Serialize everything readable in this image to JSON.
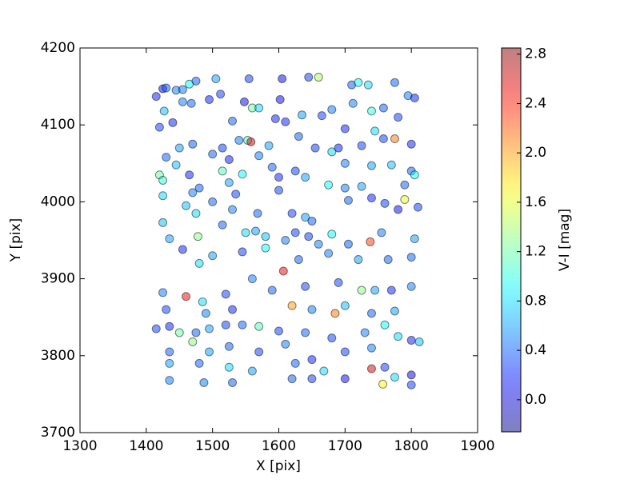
{
  "chart_data": {
    "type": "scatter",
    "xlabel": "X [pix]",
    "ylabel": "Y [pix]",
    "colorbar_label": "V-I [mag]",
    "xlim": [
      1300,
      1900
    ],
    "xticks": [
      1300,
      1400,
      1500,
      1600,
      1700,
      1800,
      1900
    ],
    "ylim": [
      3700,
      4200
    ],
    "yticks": [
      3700,
      3800,
      3900,
      4000,
      4100,
      4200
    ],
    "clim": [
      -0.26,
      2.85
    ],
    "cticks": [
      {
        "value": 0,
        "label": "0.0"
      },
      0.4,
      0.8,
      1.2,
      1.6,
      {
        "value": 2,
        "label": "2.0"
      },
      2.4,
      2.8
    ],
    "colormap": "jet",
    "alpha": 0.5,
    "x": [
      1415,
      1425,
      1430,
      1445,
      1455,
      1465,
      1475,
      1505,
      1555,
      1605,
      1645,
      1660,
      1710,
      1720,
      1735,
      1775,
      1420,
      1427,
      1440,
      1455,
      1468,
      1495,
      1512,
      1530,
      1548,
      1560,
      1570,
      1595,
      1602,
      1610,
      1635,
      1665,
      1680,
      1700,
      1712,
      1740,
      1758,
      1780,
      1795,
      1805,
      1745,
      1758,
      1775,
      1800,
      1450,
      1470,
      1515,
      1540,
      1553,
      1558,
      1585,
      1630,
      1655,
      1680,
      1690,
      1725,
      1430,
      1445,
      1500,
      1525,
      1570,
      1590,
      1625,
      1700,
      1740,
      1770,
      1800,
      1420,
      1425,
      1465,
      1480,
      1515,
      1525,
      1535,
      1545,
      1600,
      1640,
      1675,
      1700,
      1725,
      1790,
      1805,
      1425,
      1460,
      1470,
      1500,
      1530,
      1568,
      1600,
      1620,
      1640,
      1650,
      1705,
      1740,
      1760,
      1780,
      1790,
      1810,
      1425,
      1435,
      1475,
      1478,
      1515,
      1550,
      1565,
      1580,
      1610,
      1625,
      1645,
      1660,
      1680,
      1705,
      1738,
      1755,
      1805,
      1455,
      1480,
      1500,
      1545,
      1580,
      1607,
      1630,
      1675,
      1720,
      1765,
      1800,
      1425,
      1460,
      1485,
      1520,
      1560,
      1590,
      1640,
      1690,
      1725,
      1745,
      1770,
      1800,
      1430,
      1490,
      1530,
      1620,
      1650,
      1700,
      1740,
      1775,
      1415,
      1435,
      1450,
      1475,
      1495,
      1520,
      1545,
      1570,
      1600,
      1640,
      1680,
      1685,
      1730,
      1760,
      1800,
      1812,
      1435,
      1470,
      1495,
      1525,
      1570,
      1610,
      1650,
      1700,
      1740,
      1780,
      1435,
      1480,
      1525,
      1560,
      1625,
      1668,
      1740,
      1760,
      1800,
      1435,
      1487,
      1530,
      1620,
      1650,
      1700,
      1757,
      1775,
      1800
    ],
    "y": [
      4137,
      4147,
      4148,
      4145,
      4146,
      4153,
      4157,
      4160,
      4160,
      4160,
      4162,
      4162,
      4152,
      4155,
      4152,
      4155,
      4097,
      4118,
      4103,
      4130,
      4128,
      4133,
      4140,
      4105,
      4130,
      4122,
      4122,
      4108,
      4133,
      4104,
      4113,
      4112,
      4120,
      4095,
      4128,
      4118,
      4122,
      4110,
      4138,
      4135,
      4092,
      4082,
      4082,
      4075,
      4070,
      4075,
      4070,
      4080,
      4080,
      4078,
      4073,
      4085,
      4070,
      4065,
      4070,
      4073,
      4058,
      4048,
      4062,
      4055,
      4060,
      4045,
      4040,
      4050,
      4047,
      4048,
      4040,
      4035,
      4028,
      4035,
      4018,
      4040,
      4025,
      4010,
      4036,
      4032,
      4032,
      4022,
      4018,
      4020,
      4022,
      4035,
      4008,
      3995,
      4012,
      4000,
      3990,
      3985,
      4015,
      3985,
      3980,
      3975,
      4002,
      4005,
      3998,
      3990,
      4003,
      3993,
      3973,
      3952,
      3985,
      3955,
      3970,
      3960,
      3962,
      3955,
      3950,
      3960,
      3955,
      3945,
      3958,
      3945,
      3948,
      3960,
      3952,
      3938,
      3920,
      3930,
      3935,
      3940,
      3910,
      3925,
      3933,
      3925,
      3925,
      3928,
      3882,
      3877,
      3870,
      3880,
      3900,
      3885,
      3890,
      3895,
      3885,
      3885,
      3885,
      3890,
      3860,
      3855,
      3860,
      3865,
      3860,
      3865,
      3855,
      3858,
      3835,
      3838,
      3830,
      3830,
      3835,
      3840,
      3840,
      3838,
      3832,
      3830,
      3823,
      3855,
      3830,
      3840,
      3820,
      3818,
      3805,
      3818,
      3805,
      3812,
      3805,
      3815,
      3795,
      3805,
      3810,
      3825,
      3790,
      3790,
      3785,
      3780,
      3790,
      3780,
      3783,
      3785,
      3775,
      3768,
      3765,
      3765,
      3770,
      3770,
      3770,
      3763,
      3772,
      3762
    ],
    "color_values": [
      0.2,
      0.1,
      0.4,
      0.5,
      0.5,
      0.9,
      0.4,
      0.6,
      0.3,
      0.1,
      0.3,
      1.4,
      0.4,
      0.9,
      0.8,
      0.4,
      0.3,
      0.7,
      0.2,
      0.5,
      0.4,
      0.2,
      0.3,
      0.4,
      0.1,
      1.2,
      0.8,
      0.2,
      0.1,
      0.2,
      0.6,
      0.3,
      0.5,
      0.2,
      0.5,
      1.0,
      0.4,
      0.3,
      0.5,
      0.2,
      0.8,
      0.3,
      2.1,
      0.2,
      0.6,
      0.4,
      0.3,
      0.5,
      1.1,
      2.6,
      0.6,
      0.4,
      0.3,
      0.8,
      0.2,
      0.3,
      0.4,
      0.7,
      0.4,
      0.2,
      0.5,
      0.4,
      0.3,
      0.5,
      0.6,
      0.7,
      0.4,
      1.2,
      1.0,
      0.2,
      0.4,
      1.1,
      0.6,
      0.3,
      0.9,
      0.2,
      0.6,
      0.9,
      0.5,
      0.6,
      0.4,
      0.9,
      0.8,
      0.7,
      0.5,
      0.4,
      0.5,
      0.4,
      0.3,
      0.3,
      0.6,
      0.4,
      0.4,
      0.2,
      0.3,
      0.1,
      1.6,
      0.3,
      0.7,
      0.6,
      0.8,
      1.3,
      0.4,
      0.8,
      0.6,
      0.7,
      0.5,
      0.3,
      0.3,
      0.5,
      0.9,
      0.4,
      2.3,
      0.5,
      0.6,
      0.2,
      0.8,
      0.6,
      0.3,
      0.9,
      2.5,
      0.4,
      0.5,
      0.6,
      0.4,
      0.4,
      0.5,
      2.5,
      0.8,
      0.3,
      0.5,
      0.4,
      0.3,
      0.3,
      1.3,
      0.6,
      0.2,
      0.5,
      0.3,
      0.5,
      0.2,
      2.0,
      0.5,
      0.7,
      0.4,
      0.6,
      0.3,
      0.2,
      1.2,
      0.4,
      0.6,
      0.3,
      0.4,
      1.1,
      0.3,
      0.4,
      0.3,
      2.1,
      0.5,
      0.9,
      0.2,
      0.7,
      0.4,
      1.3,
      0.6,
      0.4,
      0.3,
      0.5,
      0.2,
      0.3,
      0.5,
      0.8,
      0.6,
      0.4,
      0.8,
      0.6,
      0.4,
      0.8,
      2.6,
      0.3,
      0.0,
      0.5,
      0.5,
      0.4,
      0.4,
      0.3,
      0.1,
      1.7,
      0.8,
      0.3
    ]
  }
}
